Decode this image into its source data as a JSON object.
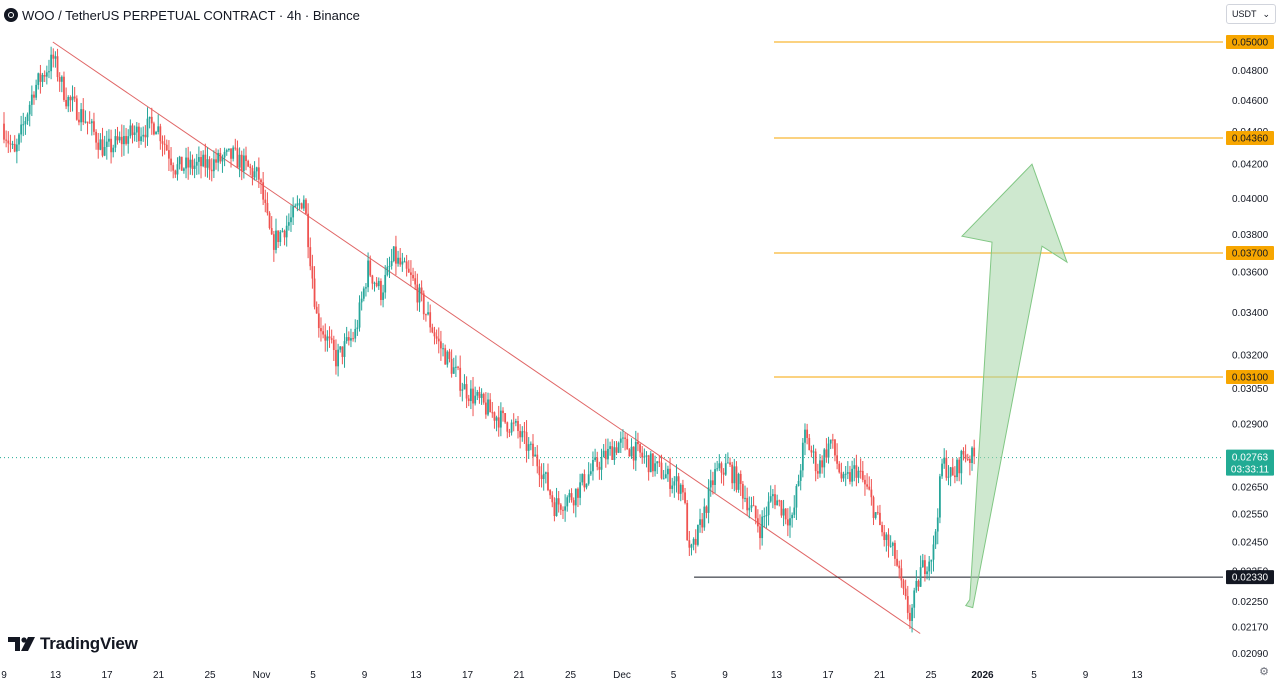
{
  "header": {
    "title": "WOO / TetherUS PERPETUAL CONTRACT · 4h · Binance",
    "currency": "USDT",
    "symbol_icon": "woo-logo-icon"
  },
  "branding": {
    "logo_text": "TradingView",
    "logo_icon": "tradingview-logo-icon"
  },
  "colors": {
    "up": "#26a69a",
    "down": "#ef5350",
    "level": "#f7a600",
    "support": "#131722",
    "trendline": "#e06666",
    "current": "#22ab94",
    "arrow": "#a5d6a7"
  },
  "chart_data": {
    "type": "candlestick",
    "title": "WOO / TetherUS PERPETUAL CONTRACT · 4h · Binance",
    "y_axis": {
      "scale": "log",
      "ticks": [
        "0.04800",
        "0.04600",
        "0.04400",
        "0.04200",
        "0.04000",
        "0.03800",
        "0.03600",
        "0.03400",
        "0.03200",
        "0.03050",
        "0.02900",
        "0.02650",
        "0.02550",
        "0.02450",
        "0.02350",
        "0.02250",
        "0.02170",
        "0.02090"
      ]
    },
    "x_axis": {
      "ticks": [
        {
          "label": "9",
          "bold": false
        },
        {
          "label": "13",
          "bold": false
        },
        {
          "label": "17",
          "bold": false
        },
        {
          "label": "21",
          "bold": false
        },
        {
          "label": "25",
          "bold": false
        },
        {
          "label": "Nov",
          "bold": false
        },
        {
          "label": "5",
          "bold": false
        },
        {
          "label": "9",
          "bold": false
        },
        {
          "label": "13",
          "bold": false
        },
        {
          "label": "17",
          "bold": false
        },
        {
          "label": "21",
          "bold": false
        },
        {
          "label": "25",
          "bold": false
        },
        {
          "label": "Dec",
          "bold": false
        },
        {
          "label": "5",
          "bold": false
        },
        {
          "label": "9",
          "bold": false
        },
        {
          "label": "13",
          "bold": false
        },
        {
          "label": "17",
          "bold": false
        },
        {
          "label": "21",
          "bold": false
        },
        {
          "label": "25",
          "bold": false
        },
        {
          "label": "2026",
          "bold": true
        },
        {
          "label": "5",
          "bold": false
        },
        {
          "label": "9",
          "bold": false
        },
        {
          "label": "13",
          "bold": false
        }
      ]
    },
    "price_path": [
      {
        "d": 9.0,
        "p": 0.0445
      },
      {
        "d": 10.0,
        "p": 0.0425
      },
      {
        "d": 11.5,
        "p": 0.0468
      },
      {
        "d": 13.0,
        "p": 0.0488
      },
      {
        "d": 14.0,
        "p": 0.0462
      },
      {
        "d": 15.5,
        "p": 0.0448
      },
      {
        "d": 17.0,
        "p": 0.0428
      },
      {
        "d": 19.0,
        "p": 0.0438
      },
      {
        "d": 21.0,
        "p": 0.0445
      },
      {
        "d": 22.5,
        "p": 0.0418
      },
      {
        "d": 25.0,
        "p": 0.042
      },
      {
        "d": 27.0,
        "p": 0.0425
      },
      {
        "d": 29.0,
        "p": 0.0412
      },
      {
        "d": 30.0,
        "p": 0.0375
      },
      {
        "d": 31.5,
        "p": 0.0388
      },
      {
        "d": 32.5,
        "p": 0.0401
      },
      {
        "d": 33.5,
        "p": 0.0338
      },
      {
        "d": 35.0,
        "p": 0.0318
      },
      {
        "d": 36.5,
        "p": 0.033
      },
      {
        "d": 37.5,
        "p": 0.0362
      },
      {
        "d": 38.5,
        "p": 0.035
      },
      {
        "d": 39.5,
        "p": 0.0368
      },
      {
        "d": 41.0,
        "p": 0.0355
      },
      {
        "d": 43.0,
        "p": 0.0325
      },
      {
        "d": 45.0,
        "p": 0.0305
      },
      {
        "d": 47.0,
        "p": 0.0295
      },
      {
        "d": 49.0,
        "p": 0.0288
      },
      {
        "d": 51.0,
        "p": 0.0272
      },
      {
        "d": 52.0,
        "p": 0.0258
      },
      {
        "d": 53.5,
        "p": 0.0262
      },
      {
        "d": 55.0,
        "p": 0.0272
      },
      {
        "d": 57.0,
        "p": 0.0282
      },
      {
        "d": 58.0,
        "p": 0.028
      },
      {
        "d": 59.5,
        "p": 0.0274
      },
      {
        "d": 61.0,
        "p": 0.0268
      },
      {
        "d": 62.0,
        "p": 0.0265
      },
      {
        "d": 62.5,
        "p": 0.024
      },
      {
        "d": 63.0,
        "p": 0.0245
      },
      {
        "d": 64.5,
        "p": 0.027
      },
      {
        "d": 65.5,
        "p": 0.0273
      },
      {
        "d": 66.5,
        "p": 0.0265
      },
      {
        "d": 68.0,
        "p": 0.025
      },
      {
        "d": 69.0,
        "p": 0.0262
      },
      {
        "d": 70.5,
        "p": 0.0252
      },
      {
        "d": 71.5,
        "p": 0.0285
      },
      {
        "d": 72.5,
        "p": 0.0272
      },
      {
        "d": 73.5,
        "p": 0.0283
      },
      {
        "d": 74.5,
        "p": 0.0266
      },
      {
        "d": 75.5,
        "p": 0.0272
      },
      {
        "d": 76.5,
        "p": 0.0262
      },
      {
        "d": 77.5,
        "p": 0.0248
      },
      {
        "d": 78.5,
        "p": 0.024
      },
      {
        "d": 79.2,
        "p": 0.0226
      },
      {
        "d": 79.7,
        "p": 0.022
      },
      {
        "d": 80.5,
        "p": 0.0235
      },
      {
        "d": 81.5,
        "p": 0.0242
      },
      {
        "d": 82.2,
        "p": 0.0275
      },
      {
        "d": 83.0,
        "p": 0.0268
      },
      {
        "d": 83.8,
        "p": 0.0278
      },
      {
        "d": 84.5,
        "p": 0.02763
      }
    ],
    "support_line": {
      "price": 0.0233,
      "label": "0.02330"
    },
    "target_levels": [
      {
        "price": 0.05,
        "label": "0.05000"
      },
      {
        "price": 0.0436,
        "label": "0.04360"
      },
      {
        "price": 0.037,
        "label": "0.03700"
      },
      {
        "price": 0.031,
        "label": "0.03100"
      }
    ],
    "current_price": {
      "price": 0.02763,
      "label": "0.02763",
      "countdown": "03:33:11"
    },
    "trendline": [
      {
        "d": 12.8,
        "p": 0.05
      },
      {
        "d": 80.3,
        "p": 0.0215
      }
    ],
    "support_start_day": 62.7,
    "arrow": {
      "from": {
        "d": 84.0,
        "p": 0.0225
      },
      "tip": {
        "d": 89.0,
        "p": 0.042
      }
    },
    "vertical_marker_day": 7.3
  }
}
